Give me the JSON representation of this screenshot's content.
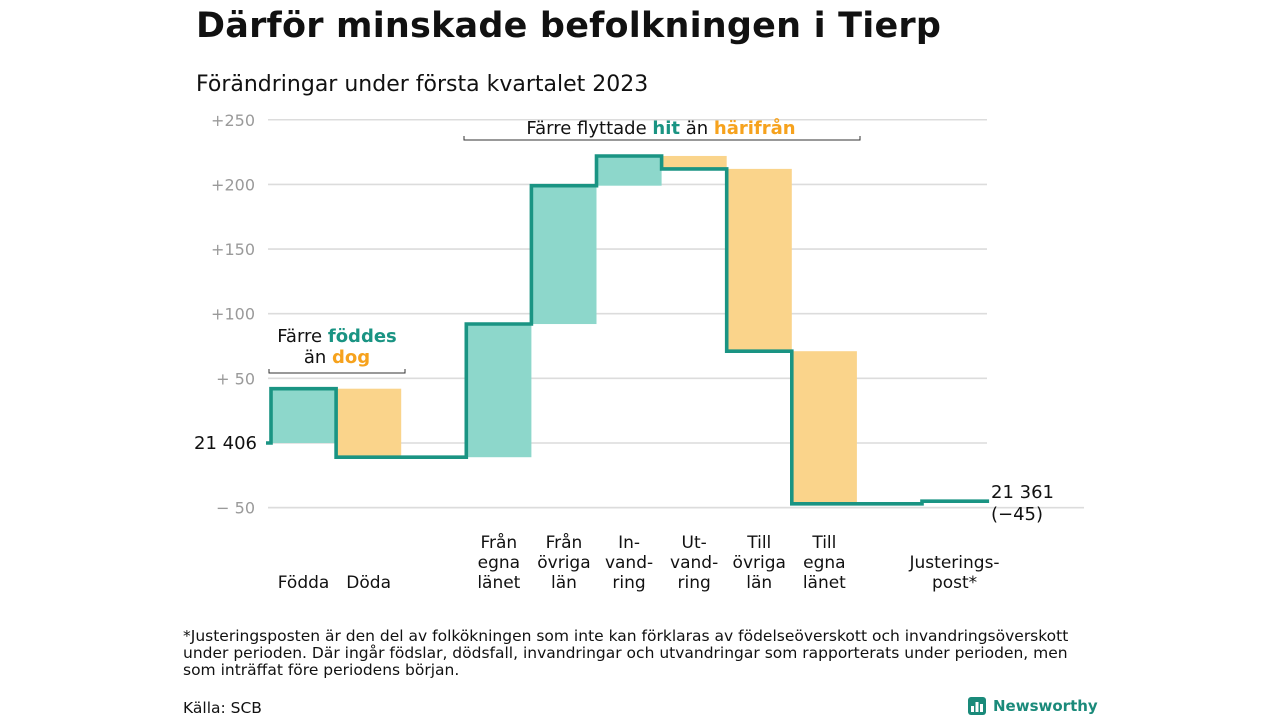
{
  "title": "Därför minskade befolkningen i Tierp",
  "subtitle": "Förändringar under första kvartalet 2023",
  "colors": {
    "inflow": "#8dd7cb",
    "outflow": "#fad48b",
    "line": "#1a9483",
    "teal_text": "#1a9483",
    "orange_text": "#f6a21d",
    "grid": "#dcdcdc",
    "tick_text": "#9a9a9a"
  },
  "chart_data": {
    "type": "waterfall",
    "start_value": 21406,
    "start_label": "21 406",
    "end_label": "21 361",
    "end_change_label": "(−45)",
    "y_ticks": [
      {
        "value": 250,
        "label": "+250"
      },
      {
        "value": 200,
        "label": "+200"
      },
      {
        "value": 150,
        "label": "+150"
      },
      {
        "value": 100,
        "label": "+100"
      },
      {
        "value": 50,
        "label": "+ 50"
      },
      {
        "value": -50,
        "label": "− 50"
      }
    ],
    "grid_values": [
      250,
      200,
      150,
      100,
      50,
      0,
      -50
    ],
    "ylim": [
      -50,
      250
    ],
    "steps": [
      {
        "category": [
          "Födda"
        ],
        "change": 42,
        "kind": "inflow"
      },
      {
        "category": [
          "Döda"
        ],
        "change": -53,
        "kind": "outflow"
      },
      {
        "category": [],
        "change": 0,
        "kind": "gap"
      },
      {
        "category": [
          "Från",
          "egna",
          "länet"
        ],
        "change": 103,
        "kind": "inflow"
      },
      {
        "category": [
          "Från",
          "övriga",
          "län"
        ],
        "change": 107,
        "kind": "inflow"
      },
      {
        "category": [
          "In-",
          "vand-",
          "ring"
        ],
        "change": 23,
        "kind": "inflow"
      },
      {
        "category": [
          "Ut-",
          "vand-",
          "ring"
        ],
        "change": -10,
        "kind": "outflow"
      },
      {
        "category": [
          "Till",
          "övriga",
          "län"
        ],
        "change": -141,
        "kind": "outflow"
      },
      {
        "category": [
          "Till",
          "egna",
          "länet"
        ],
        "change": -118,
        "kind": "outflow"
      },
      {
        "category": [],
        "change": 0,
        "kind": "gap"
      },
      {
        "category": [
          "Justerings-",
          "post*"
        ],
        "change": 2,
        "kind": "adjust"
      }
    ],
    "annotations": [
      {
        "lines": [
          [
            {
              "text": "Färre ",
              "style": "plain"
            },
            {
              "text": "föddes",
              "style": "teal"
            }
          ],
          [
            {
              "text": "än ",
              "style": "plain"
            },
            {
              "text": "dog",
              "style": "orange"
            }
          ]
        ]
      },
      {
        "lines": [
          [
            {
              "text": "Färre flyttade ",
              "style": "plain"
            },
            {
              "text": "hit",
              "style": "teal"
            },
            {
              "text": " än ",
              "style": "plain"
            },
            {
              "text": "härifrån",
              "style": "orange"
            }
          ]
        ]
      }
    ]
  },
  "footnote": "*Justeringsposten är den del av folkökningen som inte kan förklaras av födelseöverskott och invandringsöverskott under perioden. Där ingår födslar, dödsfall, invandringar och utvandringar som rapporterats under perioden, men som inträffat före periodens början.",
  "source": "Källa: SCB",
  "brand": "Newsworthy"
}
